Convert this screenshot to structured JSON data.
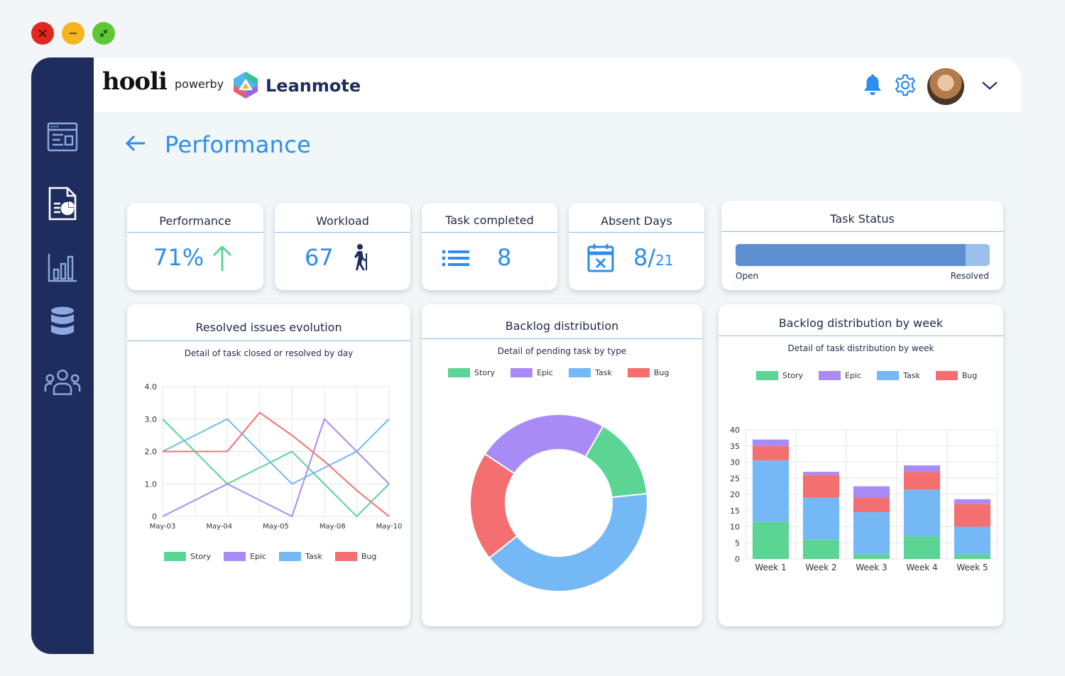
{
  "window_controls": [
    "close",
    "minimize",
    "restore"
  ],
  "brand": {
    "client": "hooli",
    "powerby": "powerby",
    "product": "Leanmote"
  },
  "sidebar": {
    "items": [
      {
        "icon": "dashboard-icon"
      },
      {
        "icon": "report-icon",
        "active": true
      },
      {
        "icon": "bar-chart-icon"
      },
      {
        "icon": "database-icon"
      },
      {
        "icon": "team-icon"
      }
    ]
  },
  "header": {
    "icons": [
      "bell-icon",
      "gear-icon",
      "avatar",
      "chevron-down-icon"
    ]
  },
  "page": {
    "title": "Performance"
  },
  "kpis": {
    "performance": {
      "title": "Performance",
      "value": "71%",
      "icon": "arrow-up-icon"
    },
    "workload": {
      "title": "Workload",
      "value": "67",
      "icon": "walking-person-icon"
    },
    "task_completed": {
      "title": "Task completed",
      "value": "8",
      "icon": "list-icon"
    },
    "absent_days": {
      "title": "Absent Days",
      "value": "8/",
      "total": "21",
      "icon": "calendar-x-icon"
    }
  },
  "task_status": {
    "title": "Task Status",
    "resolved_fraction": 0.905,
    "left_label": "Open",
    "right_label": "Resolved"
  },
  "colors": {
    "Story": "#5cd494",
    "Epic": "#a98bf5",
    "Task": "#74b8f6",
    "Bug": "#f46f6f",
    "accent": "#2f8cf0",
    "sidebar": "#1f2d5e"
  },
  "chart_data": [
    {
      "type": "line",
      "title": "Resolved issues evolution",
      "subtitle": "Detail of task closed or resolved by day",
      "tick_labels_x": [
        "May-03",
        "May-04",
        "May-05",
        "May-08",
        "May-10"
      ],
      "x": [
        0,
        1,
        2,
        3,
        4,
        5,
        6,
        7
      ],
      "ylim": [
        0,
        4
      ],
      "y_ticks": [
        "0",
        "1.0",
        "2.0",
        "3.0",
        "4.0"
      ],
      "grid": true,
      "legend": "bottom",
      "series": [
        {
          "name": "Story",
          "values": [
            3,
            2,
            1,
            1.5,
            2,
            1,
            0,
            1
          ]
        },
        {
          "name": "Epic",
          "values": [
            0,
            0.5,
            1,
            0.5,
            0,
            3,
            2,
            1
          ]
        },
        {
          "name": "Task",
          "values": [
            2,
            2.5,
            3,
            2,
            1,
            1.5,
            2,
            3
          ]
        },
        {
          "name": "Bug",
          "values": [
            2,
            2,
            2,
            3.2,
            2.5,
            1.7,
            0.8,
            0
          ]
        }
      ]
    },
    {
      "type": "pie",
      "title": "Backlog distribution",
      "subtitle": "Detail of pending task by type",
      "legend": "top",
      "series": [
        {
          "name": "Story",
          "value": 15
        },
        {
          "name": "Epic",
          "value": 24
        },
        {
          "name": "Task",
          "value": 41
        },
        {
          "name": "Bug",
          "value": 20
        }
      ]
    },
    {
      "type": "bar",
      "stacked": true,
      "title": "Backlog distribution by week",
      "subtitle": "Detail of task distribution by week",
      "categories": [
        "Week 1",
        "Week 2",
        "Week 3",
        "Week 4",
        "Week 5"
      ],
      "ylim": [
        0,
        40
      ],
      "y_ticks": [
        "0",
        "5",
        "10",
        "15",
        "20",
        "25",
        "30",
        "35",
        "40"
      ],
      "grid": true,
      "legend": "top",
      "series": [
        {
          "name": "Story",
          "values": [
            11.5,
            6,
            1.5,
            7,
            1.5
          ]
        },
        {
          "name": "Task",
          "values": [
            19,
            13,
            13,
            14.5,
            8.5
          ]
        },
        {
          "name": "Bug",
          "values": [
            4.5,
            7,
            4.5,
            5.5,
            7
          ]
        },
        {
          "name": "Epic",
          "values": [
            2,
            1,
            3.5,
            2,
            1.5
          ]
        }
      ]
    }
  ]
}
